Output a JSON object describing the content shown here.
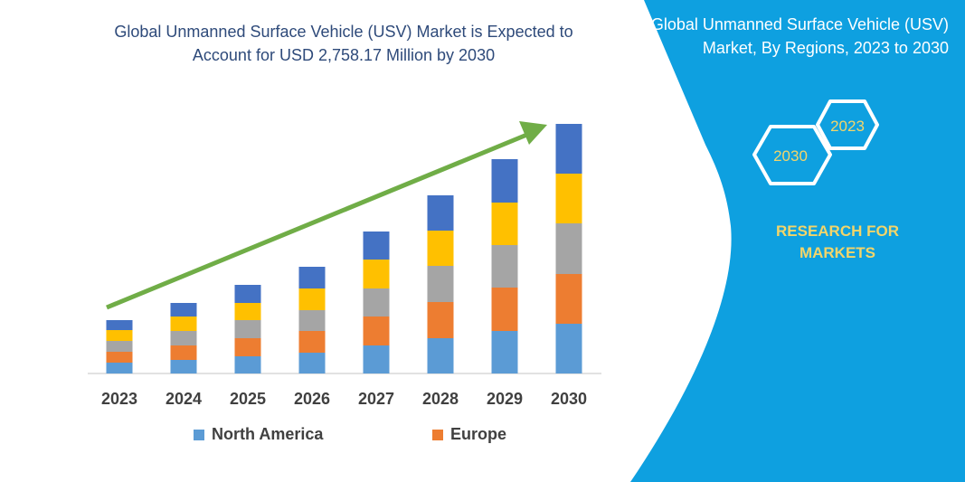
{
  "title": "Global Unmanned Surface Vehicle (USV) Market is Expected to Account for USD 2,758.17 Million by 2030",
  "side_panel": {
    "title": "Global Unmanned Surface Vehicle (USV) Market, By Regions, 2023 to 2030",
    "hex_start": "2023",
    "hex_end": "2030",
    "brand": "RESEARCH FOR MARKETS",
    "color": "#0EA0E0",
    "brand_color": "#F3D56A"
  },
  "chart_data": {
    "type": "bar",
    "stacked": true,
    "title": "Global Unmanned Surface Vehicle (USV) Market is Expected to Account for USD 2,758.17 Million by 2030",
    "categories": [
      "2023",
      "2024",
      "2025",
      "2026",
      "2027",
      "2028",
      "2029",
      "2030"
    ],
    "series": [
      {
        "name": "North America",
        "color": "#5B9BD5",
        "values": [
          12,
          15,
          19,
          23,
          31,
          39,
          47,
          55
        ]
      },
      {
        "color": "#ED7D31",
        "name_hidden": false,
        "values": [
          12,
          16,
          20,
          24,
          32,
          40,
          48,
          55
        ],
        "name": "Europe"
      },
      {
        "color": "#A5A5A5",
        "values": [
          12,
          16,
          20,
          23,
          31,
          40,
          47,
          56
        ]
      },
      {
        "color": "#FFC000",
        "values": [
          12,
          16,
          19,
          24,
          32,
          39,
          47,
          55
        ]
      },
      {
        "color": "#4472C4",
        "values": [
          11,
          15,
          20,
          24,
          31,
          39,
          48,
          55
        ]
      }
    ],
    "y_axis_shown": false,
    "grid": false,
    "legend": "bottom",
    "trend_arrow_color": "#70AD47",
    "xlabel": "",
    "ylabel": ""
  }
}
